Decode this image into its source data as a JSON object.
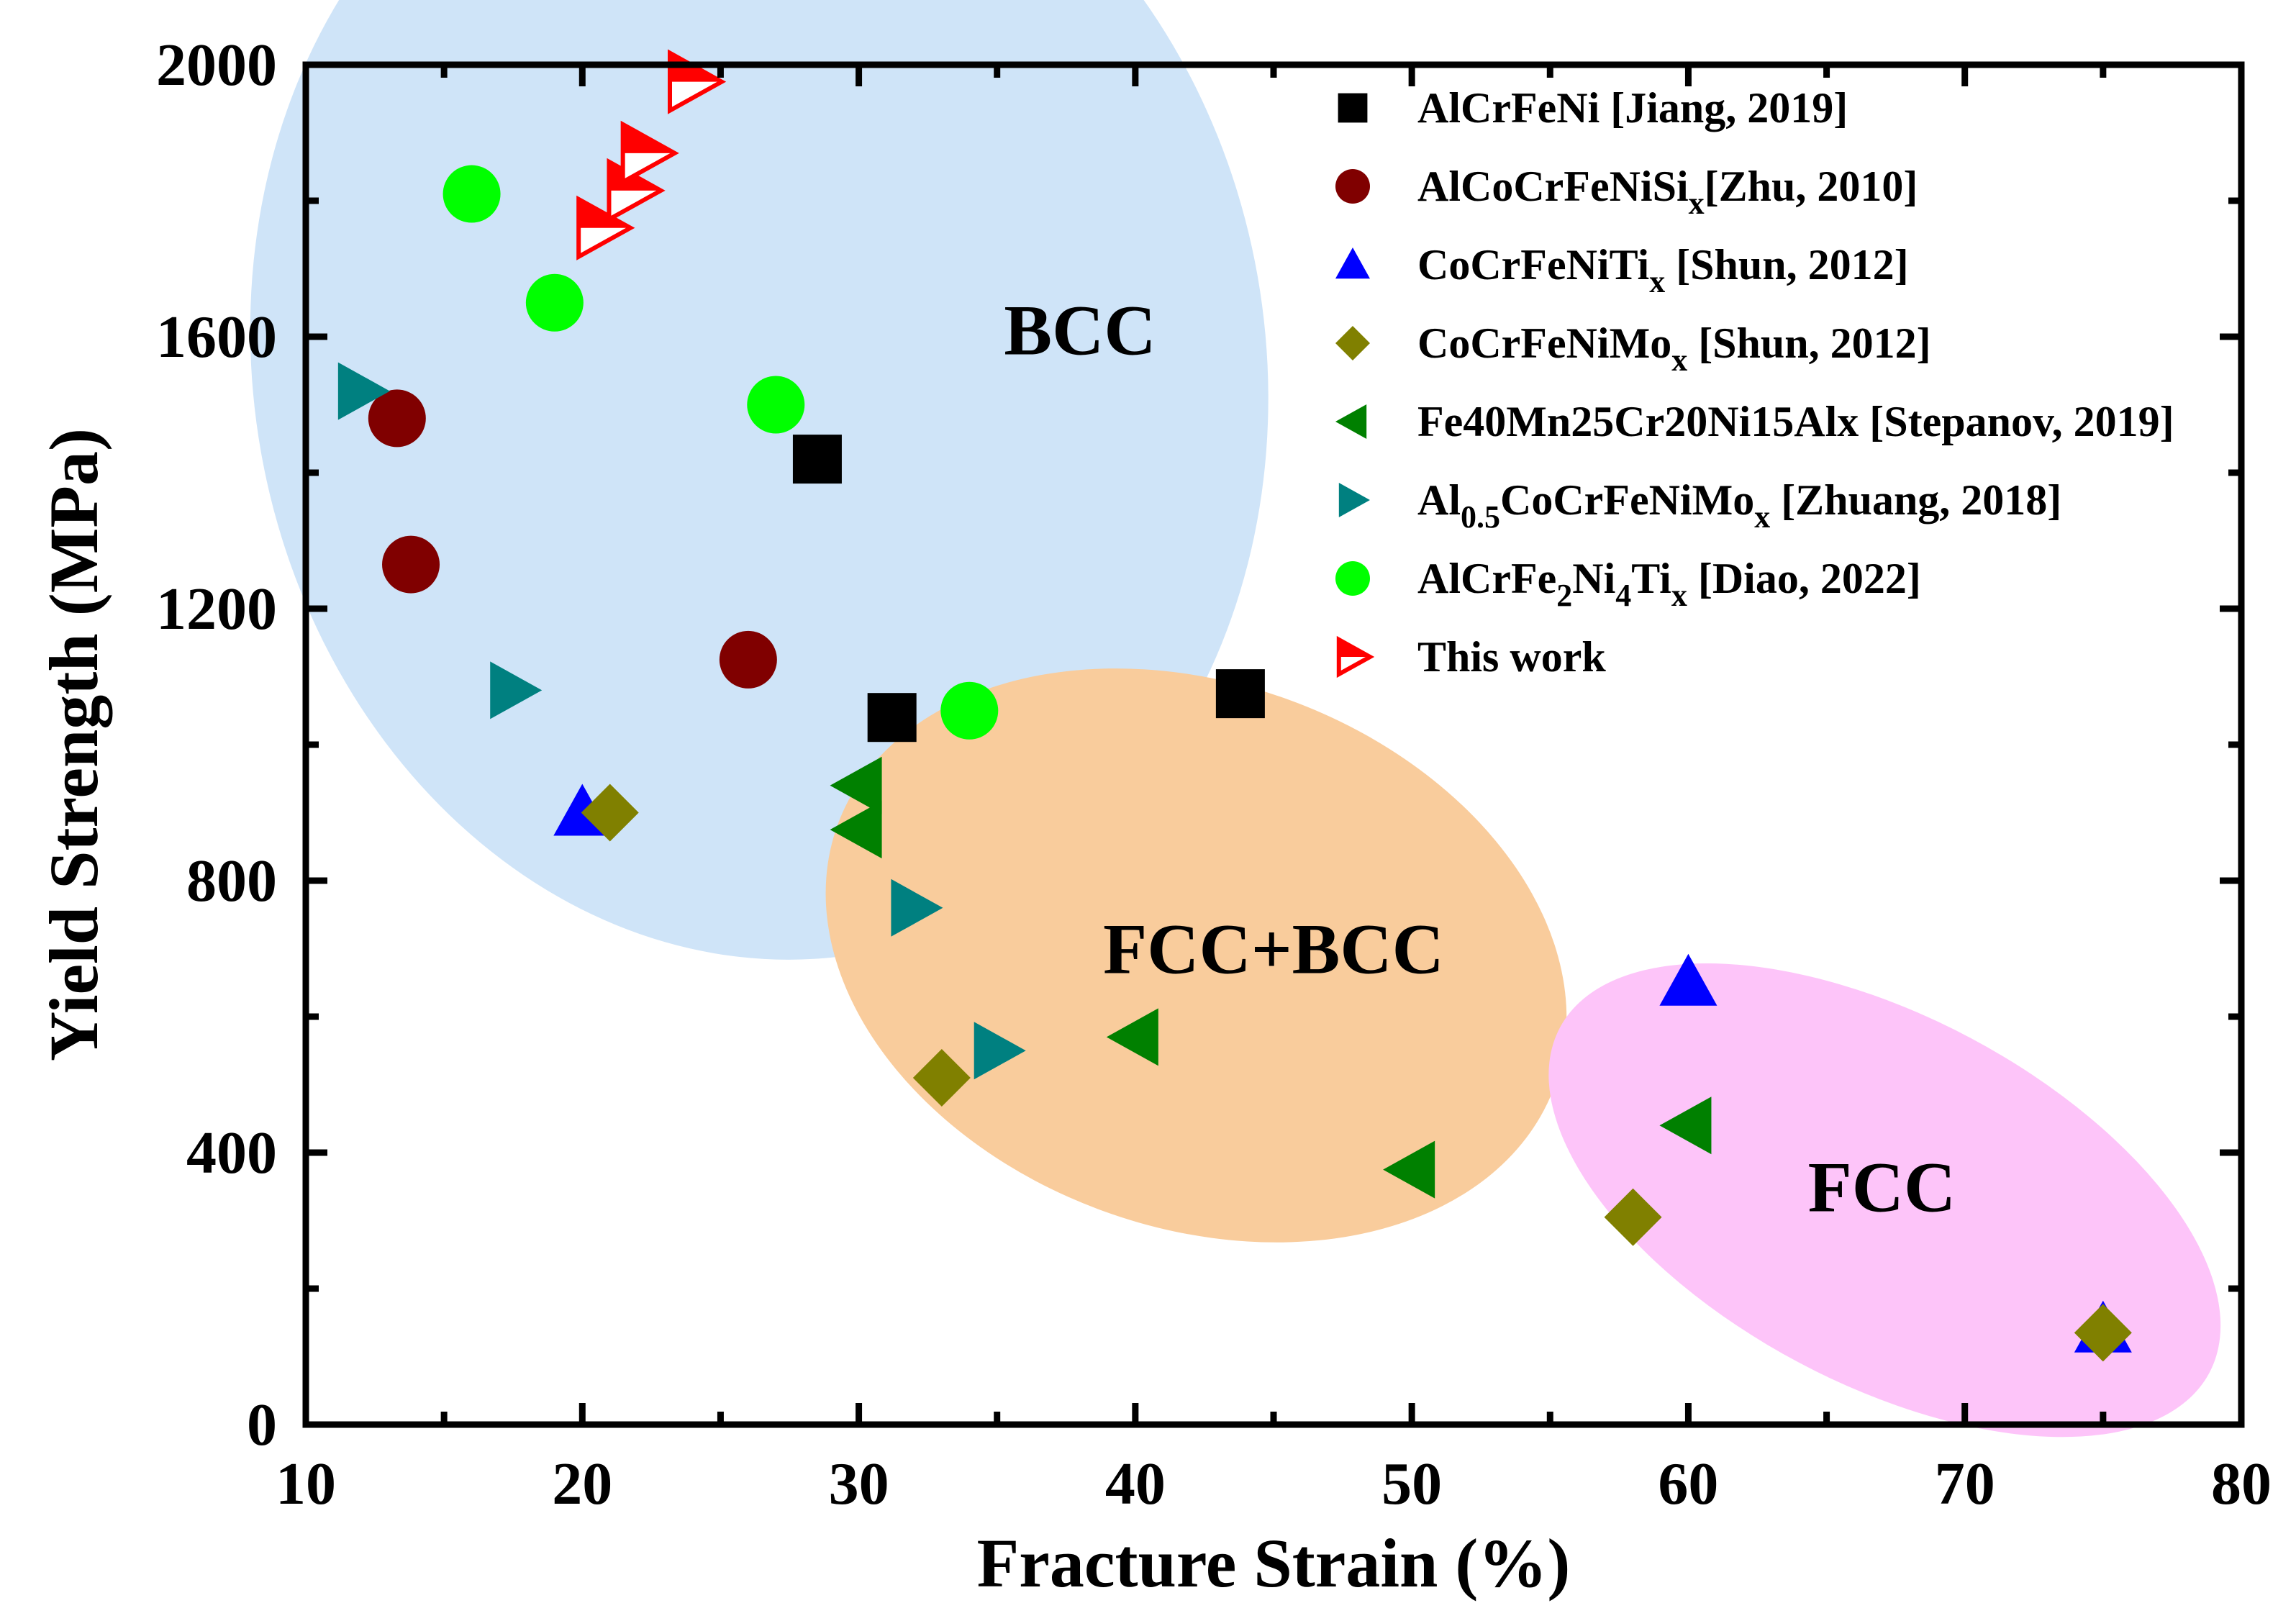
{
  "chart_data": {
    "type": "scatter",
    "title": "",
    "xlabel": "Fracture Strain (%)",
    "ylabel": "Yield Strength (MPa)",
    "xlim": [
      10,
      80
    ],
    "ylim": [
      0,
      2000
    ],
    "x_ticks": [
      10,
      20,
      30,
      40,
      50,
      60,
      70,
      80
    ],
    "y_ticks": [
      0,
      400,
      800,
      1200,
      1600,
      2000
    ],
    "legend_position": "top-right",
    "regions": [
      {
        "label": "BCC",
        "color": "#cfe4f8",
        "center": [
          26.4,
          1560
        ],
        "radii": [
          18.3,
          880
        ],
        "rotation_deg": -10
      },
      {
        "label": "FCC+BCC",
        "color": "#f9cc9c",
        "center": [
          42.2,
          690
        ],
        "radii": [
          13.8,
          400
        ],
        "rotation_deg": 20
      },
      {
        "label": "FCC",
        "color": "#fdc4f9",
        "center": [
          67.1,
          330
        ],
        "radii": [
          13.3,
          270
        ],
        "rotation_deg": 28
      }
    ],
    "region_labels": [
      {
        "text": "BCC",
        "x": 38,
        "y": 1610
      },
      {
        "text": "FCC+BCC",
        "x": 45,
        "y": 700
      },
      {
        "text": "FCC",
        "x": 67,
        "y": 350
      }
    ],
    "series": [
      {
        "name": "AlCrFeNi [Jiang, 2019]",
        "legend_parts": [
          [
            "AlCrFeNi [Jiang, 2019]",
            ""
          ]
        ],
        "marker": "square",
        "color": "#000000",
        "points": [
          [
            28.5,
            1420
          ],
          [
            31.2,
            1040
          ],
          [
            43.8,
            1075
          ]
        ]
      },
      {
        "name": "AlCoCrFeNiSix[Zhu, 2010]",
        "legend_parts": [
          [
            "AlCoCrFeNiSi",
            ""
          ],
          [
            "x",
            "sub"
          ],
          [
            "[Zhu, 2010]",
            ""
          ]
        ],
        "marker": "circle",
        "color": "#800000",
        "points": [
          [
            13.3,
            1480
          ],
          [
            13.8,
            1265
          ],
          [
            26.0,
            1125
          ]
        ]
      },
      {
        "name": "CoCrFeNiTix [Shun, 2012]",
        "legend_parts": [
          [
            "CoCrFeNiTi",
            ""
          ],
          [
            "x",
            "sub"
          ],
          [
            " [Shun, 2012]",
            ""
          ]
        ],
        "marker": "triangle-up",
        "color": "#0000ff",
        "points": [
          [
            20.0,
            900
          ],
          [
            60.0,
            650
          ],
          [
            75.0,
            140
          ]
        ]
      },
      {
        "name": "CoCrFeNiMox [Shun, 2012]",
        "legend_parts": [
          [
            "CoCrFeNiMo",
            ""
          ],
          [
            "x",
            "sub"
          ],
          [
            " [Shun, 2012]",
            ""
          ]
        ],
        "marker": "diamond",
        "color": "#808000",
        "points": [
          [
            21.0,
            900
          ],
          [
            33.0,
            510
          ],
          [
            58.0,
            305
          ],
          [
            75.0,
            135
          ]
        ]
      },
      {
        "name": "Fe40Mn25Cr20Ni15Alx [Stepanov, 2019]",
        "legend_parts": [
          [
            "Fe40Mn25Cr20Ni15Alx [Stepanov, 2019]",
            ""
          ]
        ],
        "marker": "triangle-left",
        "color": "#008000",
        "points": [
          [
            30.0,
            940
          ],
          [
            30.0,
            875
          ],
          [
            40.0,
            570
          ],
          [
            50.0,
            375
          ],
          [
            60.0,
            440
          ]
        ]
      },
      {
        "name": "Al0.5CoCrFeNiMox [Zhuang, 2018]",
        "legend_parts": [
          [
            "Al",
            ""
          ],
          [
            "0.5",
            "sub"
          ],
          [
            "CoCrFeNiMo",
            ""
          ],
          [
            "x",
            "sub"
          ],
          [
            " [Zhuang, 2018]",
            ""
          ]
        ],
        "marker": "triangle-right",
        "color": "#008080",
        "points": [
          [
            12.0,
            1520
          ],
          [
            17.5,
            1080
          ],
          [
            32.0,
            760
          ],
          [
            35.0,
            550
          ]
        ]
      },
      {
        "name": "AlCrFe2Ni4Tix [Diao, 2022]",
        "legend_parts": [
          [
            "AlCrFe",
            ""
          ],
          [
            "2",
            "sub"
          ],
          [
            "Ni",
            ""
          ],
          [
            "4",
            "sub"
          ],
          [
            "Ti",
            ""
          ],
          [
            "x",
            "sub"
          ],
          [
            " [Diao, 2022]",
            ""
          ]
        ],
        "marker": "circle",
        "color": "#00ff00",
        "points": [
          [
            16.0,
            1810
          ],
          [
            19.0,
            1650
          ],
          [
            27.0,
            1500
          ],
          [
            34.0,
            1050
          ]
        ]
      },
      {
        "name": "This work",
        "legend_parts": [
          [
            "This work",
            ""
          ]
        ],
        "marker": "triangle-right-half",
        "color": "#ff0000",
        "points": [
          [
            20.7,
            1760
          ],
          [
            21.8,
            1815
          ],
          [
            22.3,
            1870
          ],
          [
            24.0,
            1975
          ]
        ]
      }
    ]
  }
}
